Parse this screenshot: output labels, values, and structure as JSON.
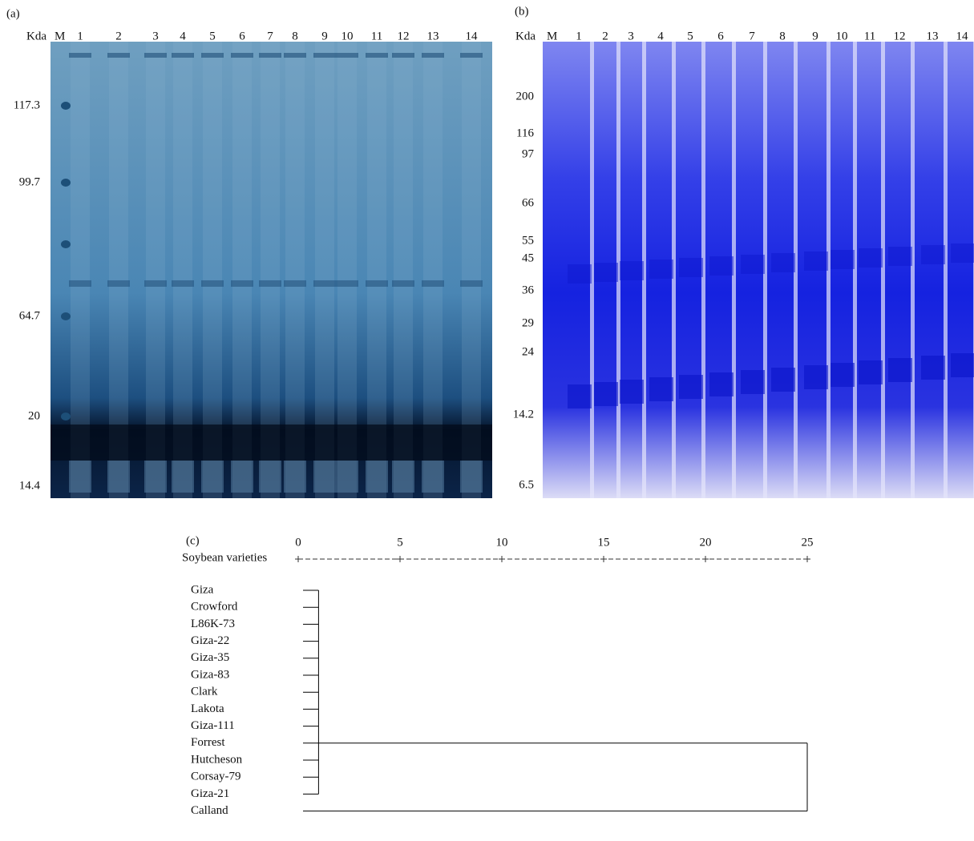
{
  "panels": {
    "a": {
      "label": "(a)",
      "unit": "Kda",
      "marker_lane": "M",
      "lanes": [
        "1",
        "2",
        "3",
        "4",
        "5",
        "6",
        "7",
        "8",
        "9",
        "10",
        "11",
        "12",
        "13",
        "14"
      ],
      "markers": [
        "117.3",
        "99.7",
        "64.7",
        "20",
        "14.4"
      ]
    },
    "b": {
      "label": "(b)",
      "unit": "Kda",
      "marker_lane": "M",
      "lanes": [
        "1",
        "2",
        "3",
        "4",
        "5",
        "6",
        "7",
        "8",
        "9",
        "10",
        "11",
        "12",
        "13",
        "14"
      ],
      "markers": [
        "200",
        "116",
        "97",
        "66",
        "55",
        "45",
        "36",
        "29",
        "24",
        "14.2",
        "6.5"
      ]
    }
  },
  "dendrogram": {
    "label": "(c)",
    "axis_title": "Soybean varieties",
    "scale_ticks": [
      0,
      5,
      10,
      15,
      20,
      25
    ],
    "varieties": [
      "Giza",
      "Crowford",
      "L86K-73",
      "Giza-22",
      "Giza-35",
      "Giza-83",
      "Clark",
      "Lakota",
      "Giza-111",
      "Forrest",
      "Hutcheson",
      "Corsay-79",
      "Giza-21",
      "Calland"
    ],
    "joins": [
      1,
      25
    ]
  }
}
